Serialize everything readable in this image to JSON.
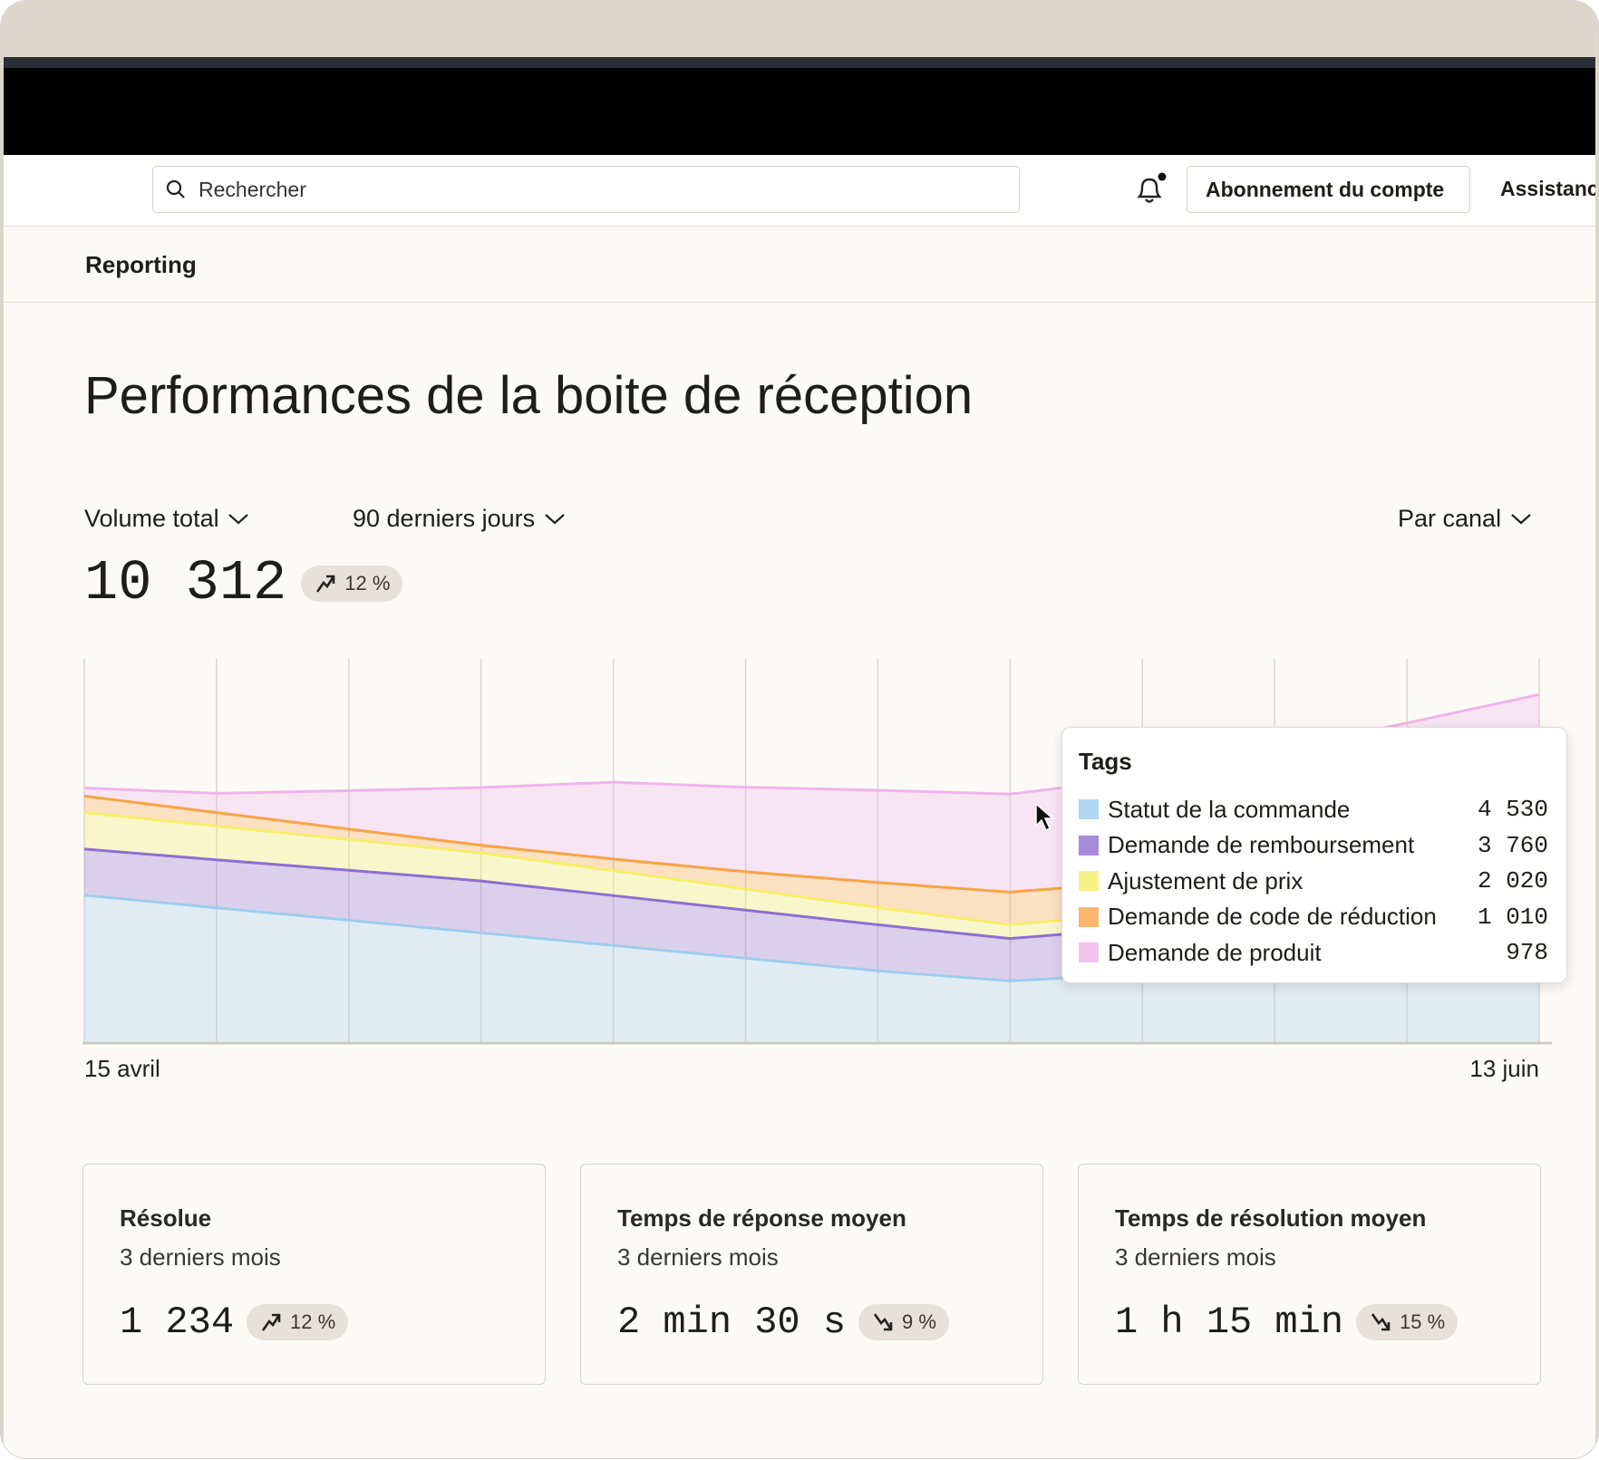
{
  "topbar": {
    "search_placeholder": "Rechercher",
    "subscription_button": "Abonnement du compte",
    "assistance": "Assistance"
  },
  "breadcrumb": "Reporting",
  "title": "Performances de la boite de réception",
  "controls": {
    "metric": "Volume total",
    "period": "90 derniers jours",
    "grouping": "Par canal"
  },
  "summary": {
    "value": "10 312",
    "change": "12 %",
    "trend": "up"
  },
  "chart_data": {
    "type": "area",
    "stacked": true,
    "grid": true,
    "categories": [
      "15 avril",
      null,
      null,
      null,
      null,
      null,
      null,
      null,
      null,
      null,
      null,
      "13 juin"
    ],
    "ylim": [
      0,
      100
    ],
    "series": [
      {
        "name": "Statut de la commande",
        "color": "#9fcdee",
        "values": [
          38.5,
          35.2,
          32,
          28.7,
          25.4,
          22.1,
          18.8,
          16.2,
          18,
          22,
          27,
          32
        ]
      },
      {
        "name": "Demande de remboursement",
        "color": "#8f6fd0",
        "values": [
          12,
          12.5,
          13,
          13.5,
          13,
          12.5,
          12,
          11,
          12,
          13,
          14,
          15
        ]
      },
      {
        "name": "Ajustement de prix",
        "color": "#f5ef6a",
        "values": [
          9.5,
          8.8,
          8,
          7.3,
          6.5,
          5.5,
          4.5,
          3.6,
          4,
          5,
          6,
          7
        ]
      },
      {
        "name": "Demande de code de réduction",
        "color": "#f7a448",
        "values": [
          4.3,
          3.5,
          2.7,
          2,
          3,
          4.5,
          6.5,
          8.5,
          8,
          7,
          6,
          5
        ]
      },
      {
        "name": "Demande de produit",
        "color": "#eeb5ea",
        "values": [
          2.1,
          5,
          10,
          15,
          20,
          22,
          24,
          25.5,
          27,
          29,
          30.3,
          31.7
        ]
      }
    ]
  },
  "tooltip": {
    "title": "Tags",
    "values": [
      "4 530",
      "3 760",
      "2 020",
      "1 010",
      "978"
    ]
  },
  "cards": [
    {
      "title": "Résolue",
      "subtitle": "3 derniers mois",
      "value": "1 234",
      "change": "12 %",
      "trend": "up"
    },
    {
      "title": "Temps de réponse moyen",
      "subtitle": "3 derniers mois",
      "value": "2 min 30 s",
      "change": "9 %",
      "trend": "down"
    },
    {
      "title": "Temps de résolution moyen",
      "subtitle": "3 derniers mois",
      "value": "1 h 15 min",
      "change": "15 %",
      "trend": "down"
    }
  ]
}
